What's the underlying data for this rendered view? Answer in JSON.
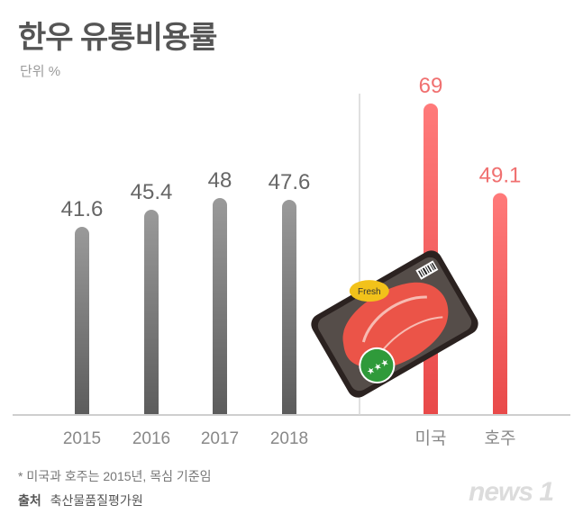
{
  "header": {
    "title": "한우 유통비용률",
    "unit": "단위 %"
  },
  "footer": {
    "note": "* 미국과 호주는 2015년, 목심 기준임",
    "source_label": "출처",
    "source_value": "축산물품질평가원",
    "brand": "news 1"
  },
  "picture": {
    "sticker_text": "Fresh",
    "tray_color": "#3a302c",
    "meat_color": "#e8392b",
    "badge_color": "#2f9a3a"
  },
  "chart_data": {
    "type": "bar",
    "categories": [
      "2015",
      "2016",
      "2017",
      "2018",
      "미국",
      "호주"
    ],
    "values": [
      41.6,
      45.4,
      48,
      47.6,
      69,
      49.1
    ],
    "value_labels": [
      "41.6",
      "45.4",
      "48",
      "47.6",
      "69",
      "49.1"
    ],
    "series_colors": [
      "#7a7a7a",
      "#7a7a7a",
      "#7a7a7a",
      "#7a7a7a",
      "#f06a6a",
      "#f06a6a"
    ],
    "label_colors": [
      "#666666",
      "#666666",
      "#666666",
      "#666666",
      "#f07070",
      "#f07070"
    ],
    "ylim": [
      0,
      100
    ],
    "grid": false,
    "legend": "none"
  }
}
